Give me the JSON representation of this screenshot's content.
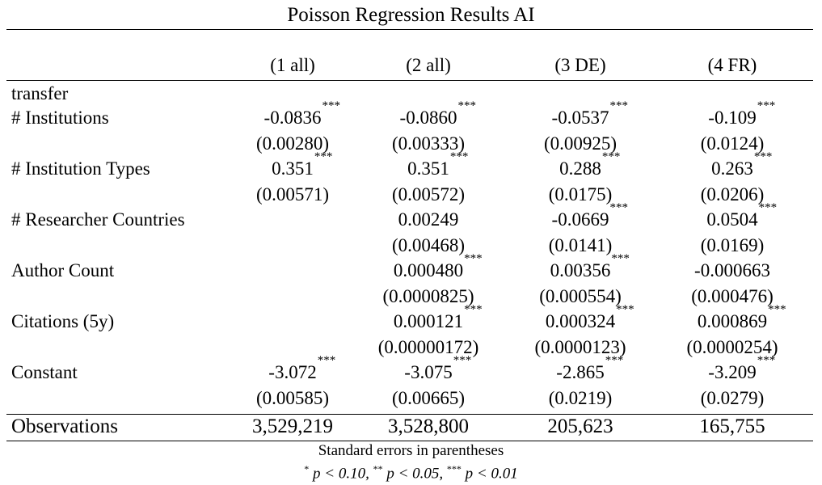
{
  "title": "Poisson Regression Results AI",
  "columns": [
    "(1 all)",
    "(2 all)",
    "(3 DE)",
    "(4 FR)"
  ],
  "section_label": "transfer",
  "rows": [
    {
      "label": "# Institutions",
      "coef": [
        {
          "value": "-0.0836",
          "stars": "***"
        },
        {
          "value": "-0.0860",
          "stars": "***"
        },
        {
          "value": "-0.0537",
          "stars": "***"
        },
        {
          "value": "-0.109",
          "stars": "***"
        }
      ],
      "se": [
        "(0.00280)",
        "(0.00333)",
        "(0.00925)",
        "(0.0124)"
      ]
    },
    {
      "label": "# Institution Types",
      "coef": [
        {
          "value": "0.351",
          "stars": "***"
        },
        {
          "value": "0.351",
          "stars": "***"
        },
        {
          "value": "0.288",
          "stars": "***"
        },
        {
          "value": "0.263",
          "stars": "***"
        }
      ],
      "se": [
        "(0.00571)",
        "(0.00572)",
        "(0.0175)",
        "(0.0206)"
      ]
    },
    {
      "label": "# Researcher Countries",
      "coef": [
        {
          "value": "",
          "stars": ""
        },
        {
          "value": "0.00249",
          "stars": ""
        },
        {
          "value": "-0.0669",
          "stars": "***"
        },
        {
          "value": "0.0504",
          "stars": "***"
        }
      ],
      "se": [
        "",
        "(0.00468)",
        "(0.0141)",
        "(0.0169)"
      ]
    },
    {
      "label": "Author Count",
      "coef": [
        {
          "value": "",
          "stars": ""
        },
        {
          "value": "0.000480",
          "stars": "***"
        },
        {
          "value": "0.00356",
          "stars": "***"
        },
        {
          "value": "-0.000663",
          "stars": ""
        }
      ],
      "se": [
        "",
        "(0.0000825)",
        "(0.000554)",
        "(0.000476)"
      ]
    },
    {
      "label": "Citations (5y)",
      "coef": [
        {
          "value": "",
          "stars": ""
        },
        {
          "value": "0.000121",
          "stars": "***"
        },
        {
          "value": "0.000324",
          "stars": "***"
        },
        {
          "value": "0.000869",
          "stars": "***"
        }
      ],
      "se": [
        "",
        "(0.00000172)",
        "(0.0000123)",
        "(0.0000254)"
      ]
    },
    {
      "label": "Constant",
      "coef": [
        {
          "value": "-3.072",
          "stars": "***"
        },
        {
          "value": "-3.075",
          "stars": "***"
        },
        {
          "value": "-2.865",
          "stars": "***"
        },
        {
          "value": "-3.209",
          "stars": "***"
        }
      ],
      "se": [
        "(0.00585)",
        "(0.00665)",
        "(0.0219)",
        "(0.0279)"
      ]
    }
  ],
  "observations": {
    "label": "Observations",
    "values": [
      "3,529,219",
      "3,528,800",
      "205,623",
      "165,755"
    ]
  },
  "notes": {
    "line1": "Standard errors in parentheses",
    "line2": [
      {
        "sup": "*",
        "text": "p < 0.10, "
      },
      {
        "sup": "**",
        "text": "p < 0.05, "
      },
      {
        "sup": "***",
        "text": "p < 0.01"
      }
    ]
  }
}
